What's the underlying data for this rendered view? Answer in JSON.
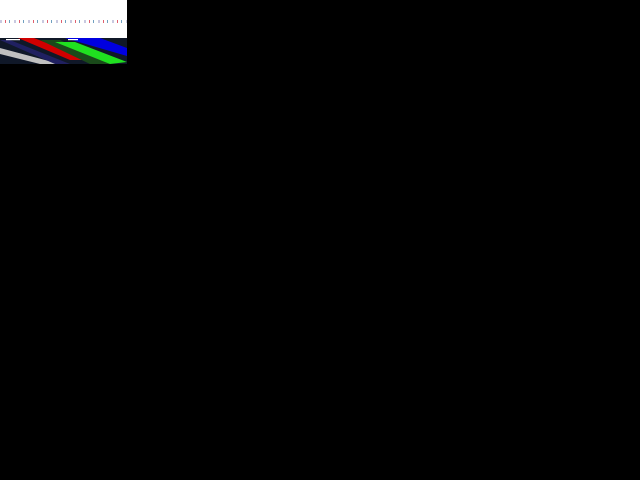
{
  "colors": {
    "background": "#000000",
    "panel": "#ffffff",
    "stripe_red": "#e00000",
    "stripe_blue": "#0000e0",
    "stripe_green": "#20e020",
    "stripe_gray": "#c0c0c0"
  }
}
